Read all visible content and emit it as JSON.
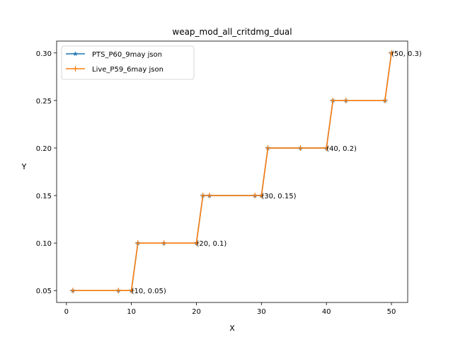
{
  "chart_data": {
    "type": "line",
    "title": "weap_mod_all_critdmg_dual",
    "xlabel": "X",
    "ylabel": "Y",
    "xlim": [
      -1.5,
      52.5
    ],
    "ylim": [
      0.0375,
      0.3125
    ],
    "xticks": [
      0,
      10,
      20,
      30,
      40,
      50
    ],
    "yticks": [
      0.05,
      0.1,
      0.15,
      0.2,
      0.25,
      0.3
    ],
    "xtick_labels": [
      "0",
      "10",
      "20",
      "30",
      "40",
      "50"
    ],
    "ytick_labels": [
      "0.05",
      "0.10",
      "0.15",
      "0.20",
      "0.25",
      "0.30"
    ],
    "legend_position": "top-left",
    "series": [
      {
        "name": "PTS_P60_9may json",
        "color": "#1f77b4",
        "marker": "star",
        "x": [
          1,
          8,
          10,
          11,
          15,
          20,
          21,
          22,
          29,
          30,
          31,
          36,
          40,
          41,
          43,
          49,
          50
        ],
        "y": [
          0.05,
          0.05,
          0.05,
          0.1,
          0.1,
          0.1,
          0.15,
          0.15,
          0.15,
          0.15,
          0.2,
          0.2,
          0.2,
          0.25,
          0.25,
          0.25,
          0.3
        ]
      },
      {
        "name": "Live_P59_6may json",
        "color": "#ff7f0e",
        "marker": "plus",
        "x": [
          1,
          8,
          10,
          11,
          15,
          20,
          21,
          22,
          29,
          30,
          31,
          36,
          40,
          41,
          43,
          49,
          50
        ],
        "y": [
          0.05,
          0.05,
          0.05,
          0.1,
          0.1,
          0.1,
          0.15,
          0.15,
          0.15,
          0.15,
          0.2,
          0.2,
          0.2,
          0.25,
          0.25,
          0.25,
          0.3
        ]
      }
    ],
    "annotations": [
      {
        "x": 10,
        "y": 0.05,
        "text": "(10, 0.05)"
      },
      {
        "x": 20,
        "y": 0.1,
        "text": "(20, 0.1)"
      },
      {
        "x": 30,
        "y": 0.15,
        "text": "(30, 0.15)"
      },
      {
        "x": 40,
        "y": 0.2,
        "text": "(40, 0.2)"
      },
      {
        "x": 50,
        "y": 0.3,
        "text": "(50, 0.3)"
      }
    ]
  }
}
